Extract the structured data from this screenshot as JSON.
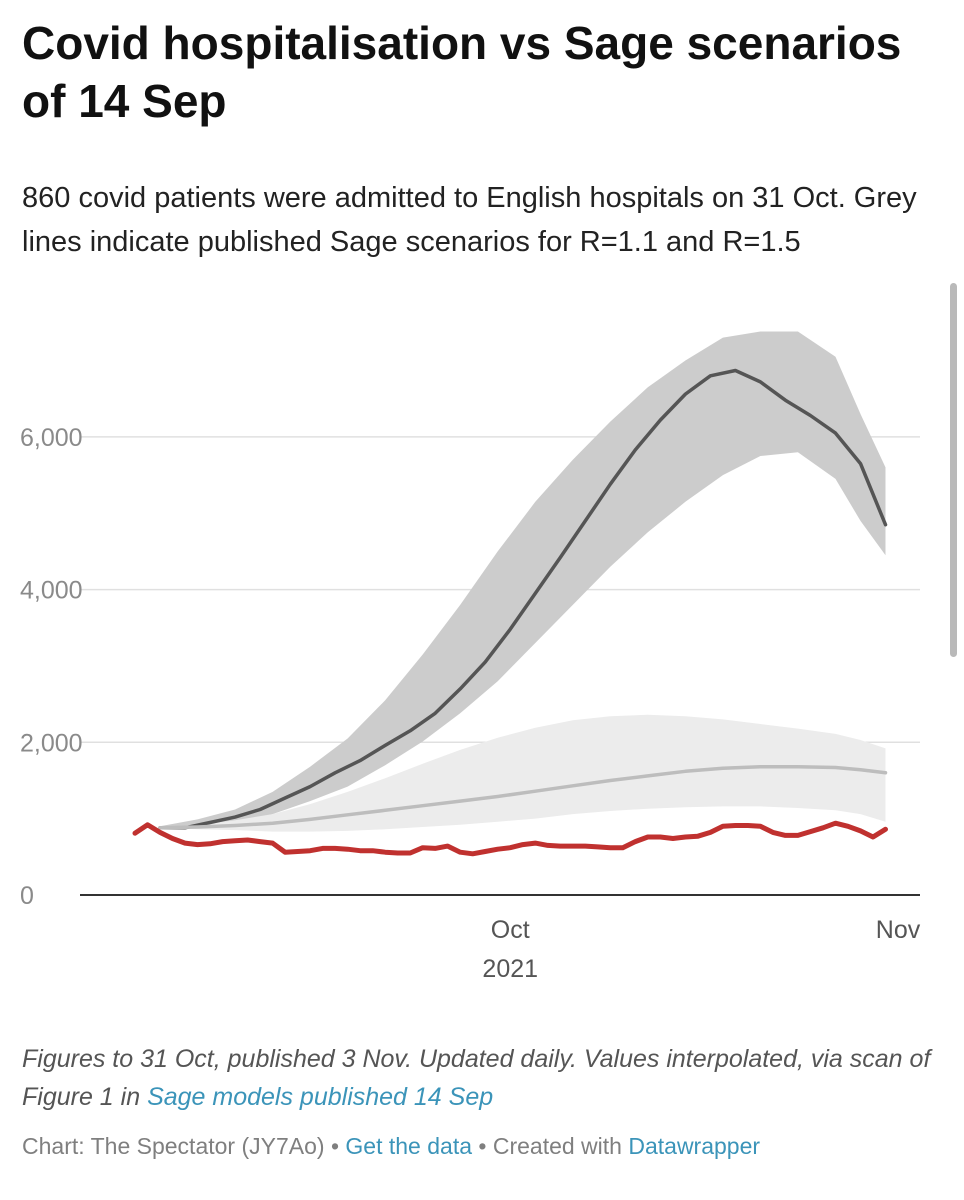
{
  "header": {
    "title": "Covid hospitalisation vs Sage scenarios of 14 Sep",
    "subtitle": "860 covid patients were admitted to English hospitals on 31 Oct. Grey lines indicate published Sage scenarios for R=1.1 and R=1.5"
  },
  "footer": {
    "notes_text": "Figures to 31 Oct, published 3 Nov. Updated daily. Values interpolated, via scan of Figure 1 in ",
    "notes_link": "Sage models published 14 Sep",
    "credit_prefix": "Chart: The Spectator (JY7Ao)",
    "separator": "•",
    "get_data": "Get the data",
    "created_with": "Created with",
    "datawrapper": "Datawrapper"
  },
  "colors": {
    "actual": "#c0312f",
    "scenario_high_line": "#555555",
    "scenario_high_band": "#cccccc",
    "scenario_low_line": "#bdbdbd",
    "scenario_low_band": "#ececec",
    "gridline": "#e0e0e0",
    "link": "#3b94b9"
  },
  "chart_data": {
    "type": "line",
    "x_type": "date",
    "xlim": [
      "2021-09-01",
      "2021-11-01"
    ],
    "ylim": [
      0,
      7400
    ],
    "y_ticks": [
      0,
      2000,
      4000,
      6000
    ],
    "y_tick_labels": [
      "0",
      "2,000",
      "4,000",
      "6,000"
    ],
    "x_ticks": [
      {
        "date": "2021-10-01",
        "label": "Oct",
        "sublabel": "2021"
      },
      {
        "date": "2021-11-01",
        "label": "Nov"
      }
    ],
    "grid": true,
    "legend": "none",
    "series": [
      {
        "style": "line",
        "color": "#555555",
        "x": [
          "2021-09-03",
          "2021-09-05",
          "2021-09-07",
          "2021-09-09",
          "2021-09-11",
          "2021-09-13",
          "2021-09-15",
          "2021-09-17",
          "2021-09-19",
          "2021-09-21",
          "2021-09-23",
          "2021-09-25",
          "2021-09-27",
          "2021-09-29",
          "2021-10-01",
          "2021-10-03",
          "2021-10-05",
          "2021-10-07",
          "2021-10-09",
          "2021-10-11",
          "2021-10-13",
          "2021-10-15",
          "2021-10-17",
          "2021-10-19",
          "2021-10-21",
          "2021-10-23",
          "2021-10-25",
          "2021-10-27",
          "2021-10-29",
          "2021-10-31"
        ],
        "y": [
          880,
          880,
          950,
          1020,
          1120,
          1270,
          1420,
          1600,
          1760,
          1960,
          2150,
          2380,
          2700,
          3050,
          3480,
          3950,
          4420,
          4900,
          5380,
          5830,
          6220,
          6560,
          6800,
          6870,
          6720,
          6480,
          6280,
          6050,
          5650,
          4850
        ]
      },
      {
        "style": "band",
        "color": "#cccccc",
        "x": [
          "2021-09-03",
          "2021-09-06",
          "2021-09-09",
          "2021-09-12",
          "2021-09-15",
          "2021-09-18",
          "2021-09-21",
          "2021-09-24",
          "2021-09-27",
          "2021-09-30",
          "2021-10-03",
          "2021-10-06",
          "2021-10-09",
          "2021-10-12",
          "2021-10-15",
          "2021-10-18",
          "2021-10-21",
          "2021-10-24",
          "2021-10-27",
          "2021-10-29",
          "2021-10-31"
        ],
        "upper": [
          900,
          990,
          1120,
          1350,
          1680,
          2050,
          2550,
          3150,
          3800,
          4500,
          5150,
          5700,
          6200,
          6650,
          7000,
          7300,
          7380,
          7380,
          7050,
          6300,
          5600
        ],
        "lower": [
          880,
          900,
          930,
          1060,
          1230,
          1420,
          1700,
          2010,
          2380,
          2800,
          3300,
          3800,
          4300,
          4750,
          5150,
          5500,
          5750,
          5800,
          5450,
          4900,
          4450
        ]
      },
      {
        "style": "line",
        "color": "#bdbdbd",
        "x": [
          "2021-09-03",
          "2021-09-06",
          "2021-09-09",
          "2021-09-12",
          "2021-09-15",
          "2021-09-18",
          "2021-09-21",
          "2021-09-24",
          "2021-09-27",
          "2021-09-30",
          "2021-10-03",
          "2021-10-06",
          "2021-10-09",
          "2021-10-12",
          "2021-10-15",
          "2021-10-18",
          "2021-10-21",
          "2021-10-24",
          "2021-10-27",
          "2021-10-29",
          "2021-10-31"
        ],
        "y": [
          880,
          890,
          910,
          940,
          990,
          1050,
          1110,
          1170,
          1230,
          1290,
          1360,
          1430,
          1500,
          1560,
          1620,
          1660,
          1680,
          1680,
          1670,
          1640,
          1600
        ]
      },
      {
        "style": "band",
        "color": "#ececec",
        "x": [
          "2021-09-03",
          "2021-09-06",
          "2021-09-09",
          "2021-09-12",
          "2021-09-15",
          "2021-09-18",
          "2021-09-21",
          "2021-09-24",
          "2021-09-27",
          "2021-09-30",
          "2021-10-03",
          "2021-10-06",
          "2021-10-09",
          "2021-10-12",
          "2021-10-15",
          "2021-10-18",
          "2021-10-21",
          "2021-10-24",
          "2021-10-27",
          "2021-10-29",
          "2021-10-31"
        ],
        "upper": [
          880,
          920,
          980,
          1060,
          1190,
          1350,
          1530,
          1720,
          1900,
          2060,
          2190,
          2290,
          2340,
          2360,
          2340,
          2300,
          2240,
          2180,
          2110,
          2030,
          1920
        ],
        "lower": [
          880,
          860,
          850,
          830,
          830,
          840,
          860,
          890,
          920,
          960,
          1000,
          1060,
          1100,
          1130,
          1150,
          1160,
          1160,
          1140,
          1110,
          1060,
          960
        ]
      },
      {
        "style": "line",
        "color": "#c0312f",
        "x": [
          "2021-09-01",
          "2021-09-02",
          "2021-09-03",
          "2021-09-04",
          "2021-09-05",
          "2021-09-06",
          "2021-09-07",
          "2021-09-08",
          "2021-09-09",
          "2021-09-10",
          "2021-09-11",
          "2021-09-12",
          "2021-09-13",
          "2021-09-14",
          "2021-09-15",
          "2021-09-16",
          "2021-09-17",
          "2021-09-18",
          "2021-09-19",
          "2021-09-20",
          "2021-09-21",
          "2021-09-22",
          "2021-09-23",
          "2021-09-24",
          "2021-09-25",
          "2021-09-26",
          "2021-09-27",
          "2021-09-28",
          "2021-09-29",
          "2021-09-30",
          "2021-10-01",
          "2021-10-02",
          "2021-10-03",
          "2021-10-04",
          "2021-10-05",
          "2021-10-06",
          "2021-10-07",
          "2021-10-08",
          "2021-10-09",
          "2021-10-10",
          "2021-10-11",
          "2021-10-12",
          "2021-10-13",
          "2021-10-14",
          "2021-10-15",
          "2021-10-16",
          "2021-10-17",
          "2021-10-18",
          "2021-10-19",
          "2021-10-20",
          "2021-10-21",
          "2021-10-22",
          "2021-10-23",
          "2021-10-24",
          "2021-10-25",
          "2021-10-26",
          "2021-10-27",
          "2021-10-28",
          "2021-10-29",
          "2021-10-30",
          "2021-10-31"
        ],
        "y": [
          810,
          920,
          820,
          740,
          680,
          660,
          670,
          700,
          710,
          720,
          700,
          680,
          560,
          570,
          580,
          610,
          610,
          600,
          580,
          580,
          560,
          550,
          550,
          620,
          610,
          640,
          560,
          540,
          570,
          600,
          620,
          660,
          680,
          650,
          640,
          640,
          640,
          630,
          620,
          620,
          700,
          760,
          760,
          740,
          760,
          770,
          820,
          900,
          910,
          910,
          900,
          820,
          780,
          780,
          830,
          880,
          940,
          900,
          840,
          760,
          860
        ]
      }
    ]
  }
}
